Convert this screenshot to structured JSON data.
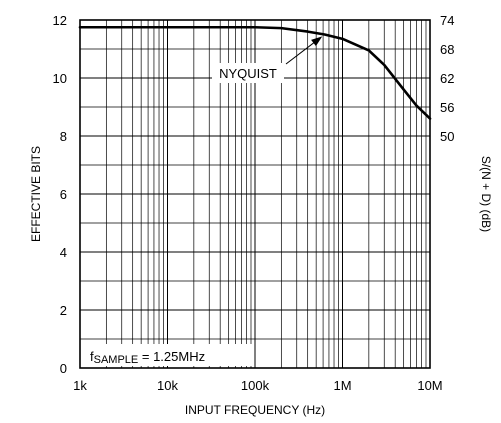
{
  "chart_data": {
    "type": "line",
    "title": "",
    "xlabel": "INPUT FREQUENCY (Hz)",
    "ylabel": "EFFECTIVE BITS",
    "y2label": "S/(N + D) (dB)",
    "x_scale": "log",
    "xlim": [
      1000,
      10000000
    ],
    "ylim": [
      0,
      12
    ],
    "x_ticks": [
      {
        "value": 1000,
        "label": "1k"
      },
      {
        "value": 10000,
        "label": "10k"
      },
      {
        "value": 100000,
        "label": "100k"
      },
      {
        "value": 1000000,
        "label": "1M"
      },
      {
        "value": 10000000,
        "label": "10M"
      }
    ],
    "y_ticks": [
      {
        "value": 0,
        "label": "0"
      },
      {
        "value": 2,
        "label": "2"
      },
      {
        "value": 4,
        "label": "4"
      },
      {
        "value": 6,
        "label": "6"
      },
      {
        "value": 8,
        "label": "8"
      },
      {
        "value": 10,
        "label": "10"
      },
      {
        "value": 12,
        "label": "12"
      }
    ],
    "y2_ticks": [
      {
        "value": 12,
        "label": "74"
      },
      {
        "value": 11,
        "label": "68"
      },
      {
        "value": 10,
        "label": "62"
      },
      {
        "value": 9,
        "label": "56"
      },
      {
        "value": 8,
        "label": "50"
      }
    ],
    "grid": true,
    "series": [
      {
        "x": [
          1000,
          10000,
          100000,
          200000,
          400000,
          625000,
          1000000,
          2000000,
          3000000,
          5000000,
          7000000,
          10000000
        ],
        "y": [
          11.75,
          11.75,
          11.75,
          11.72,
          11.6,
          11.5,
          11.35,
          10.95,
          10.45,
          9.6,
          9.05,
          8.6
        ]
      }
    ],
    "annotations": {
      "nyquist": {
        "label": "NYQUIST",
        "x": 625000,
        "y": 11.5
      },
      "fsample": {
        "prefix": "f",
        "sub": "SAMPLE",
        "value": " = 1.25MHz"
      }
    }
  }
}
